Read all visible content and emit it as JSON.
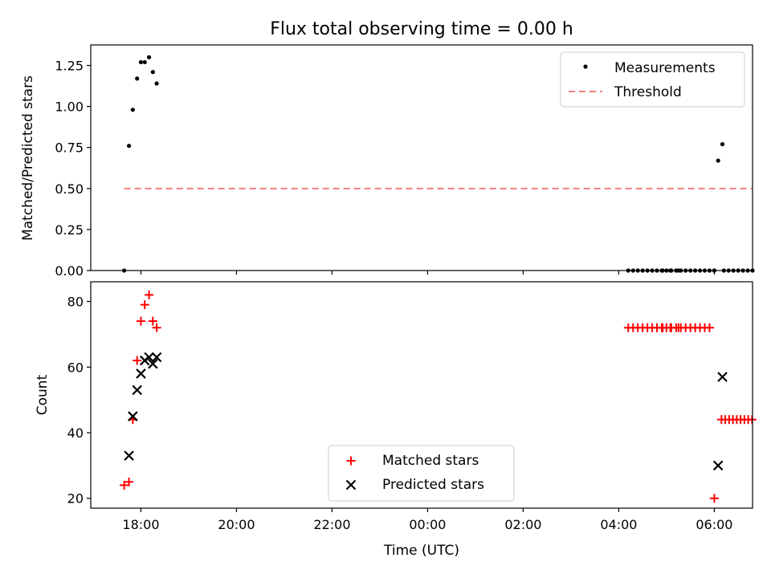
{
  "figure": {
    "title": "Flux total observing time = 0.00 h",
    "xlabel": "Time (UTC)"
  },
  "chart_data": [
    {
      "type": "scatter",
      "ylabel": "Matched/Predicted stars",
      "ylim": [
        0,
        1.375
      ],
      "yticks": [
        "0.00",
        "0.25",
        "0.50",
        "0.75",
        "1.00",
        "1.25"
      ],
      "x_unit": "hours since 17:00 UTC",
      "xlim": [
        16.95,
        30.8
      ],
      "xticks": [
        {
          "pos": 18,
          "label": "18:00"
        },
        {
          "pos": 20,
          "label": "20:00"
        },
        {
          "pos": 22,
          "label": "22:00"
        },
        {
          "pos": 24,
          "label": "00:00"
        },
        {
          "pos": 26,
          "label": "02:00"
        },
        {
          "pos": 28,
          "label": "04:00"
        },
        {
          "pos": 30,
          "label": "06:00"
        }
      ],
      "legend_position": "top-right",
      "series": [
        {
          "name": "Measurements",
          "marker": "dot",
          "color": "#000000",
          "points": [
            [
              17.65,
              0.0
            ],
            [
              17.75,
              0.76
            ],
            [
              17.83,
              0.98
            ],
            [
              17.92,
              1.17
            ],
            [
              18.0,
              1.27
            ],
            [
              18.08,
              1.27
            ],
            [
              18.17,
              1.3
            ],
            [
              18.25,
              1.21
            ],
            [
              18.33,
              1.14
            ],
            [
              28.92,
              0.0
            ],
            [
              29.08,
              0.0
            ],
            [
              29.25,
              0.0
            ],
            [
              30.0,
              0.0
            ],
            [
              30.08,
              0.67
            ],
            [
              30.17,
              0.77
            ],
            [
              30.2,
              0.0
            ],
            [
              30.3,
              0.0
            ],
            [
              30.4,
              0.0
            ],
            [
              30.5,
              0.0
            ],
            [
              30.6,
              0.0
            ],
            [
              30.7,
              0.0
            ],
            [
              30.8,
              0.0
            ]
          ],
          "dense_zero_range": [
            28.2,
            30.05
          ]
        },
        {
          "name": "Threshold",
          "style": "dashed",
          "color": "#f08080",
          "x": [
            17.65,
            30.8
          ],
          "values": [
            0.5,
            0.5
          ]
        }
      ]
    },
    {
      "type": "scatter",
      "ylabel": "Count",
      "ylim": [
        17,
        86
      ],
      "yticks": [
        "20",
        "40",
        "60",
        "80"
      ],
      "legend_position": "bottom-center",
      "series": [
        {
          "name": "Matched stars",
          "marker": "plus",
          "color": "#ff0000",
          "points": [
            [
              17.65,
              24
            ],
            [
              17.75,
              25
            ],
            [
              17.83,
              44
            ],
            [
              17.92,
              62
            ],
            [
              18.0,
              74
            ],
            [
              18.08,
              79
            ],
            [
              18.17,
              82
            ],
            [
              18.25,
              74
            ],
            [
              18.33,
              72
            ],
            [
              28.92,
              72
            ],
            [
              29.08,
              72
            ],
            [
              29.25,
              72
            ],
            [
              30.0,
              20
            ]
          ],
          "dense_range": {
            "from": 28.2,
            "to": 29.95,
            "step": 0.1,
            "value": 72
          },
          "dense_range_2": {
            "from": 30.15,
            "to": 30.8,
            "step": 0.08,
            "value": 44
          }
        },
        {
          "name": "Predicted stars",
          "marker": "x",
          "color": "#000000",
          "points": [
            [
              17.75,
              33
            ],
            [
              17.83,
              45
            ],
            [
              17.92,
              53
            ],
            [
              18.0,
              58
            ],
            [
              18.08,
              62
            ],
            [
              18.17,
              63
            ],
            [
              18.25,
              61
            ],
            [
              18.33,
              63
            ],
            [
              30.08,
              30
            ],
            [
              30.17,
              57
            ]
          ]
        }
      ]
    }
  ]
}
